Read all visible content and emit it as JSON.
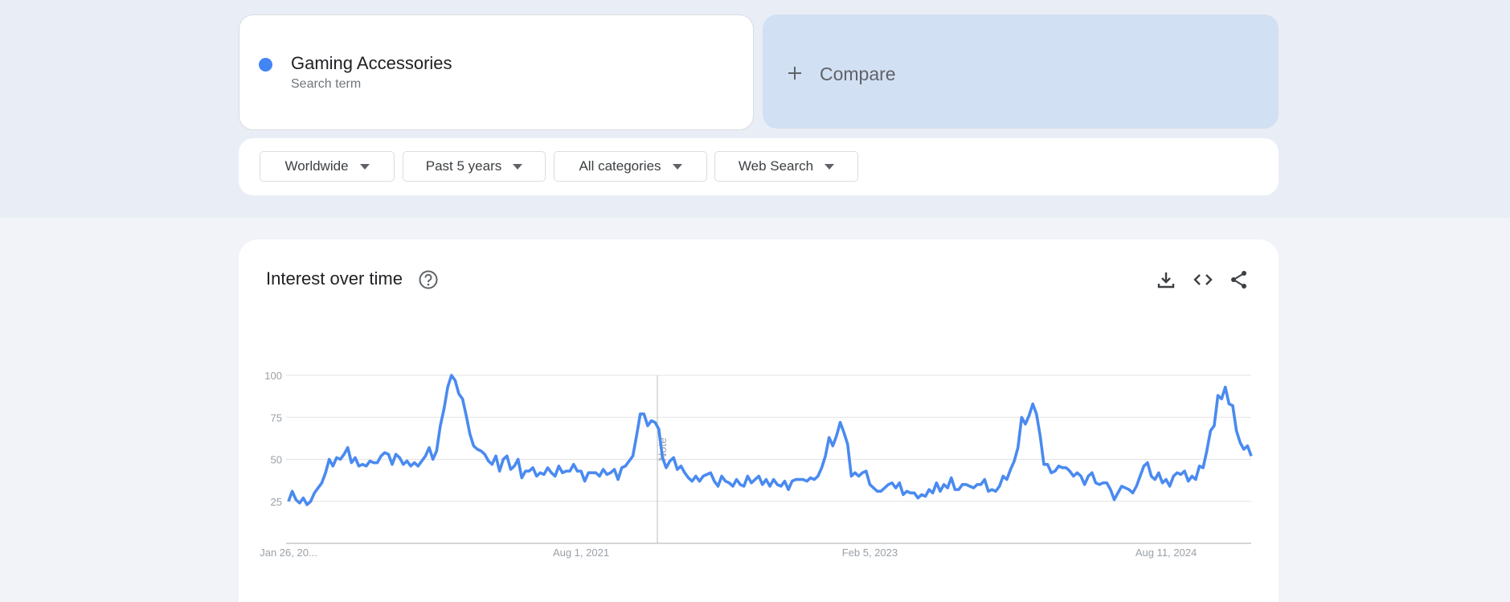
{
  "search": {
    "term": "Gaming Accessories",
    "subtitle": "Search term"
  },
  "compare": {
    "label": "Compare"
  },
  "filters": [
    "Worldwide",
    "Past 5 years",
    "All categories",
    "Web Search"
  ],
  "panel": {
    "title": "Interest over time"
  },
  "chart_data": {
    "type": "line",
    "annotation": "Note",
    "grid": true,
    "ylim": [
      0,
      100
    ],
    "yticks": [
      25,
      50,
      75,
      100
    ],
    "categories": [
      "Jan 26, 20...",
      null,
      null,
      null,
      null,
      null,
      null,
      null,
      null,
      null,
      null,
      null,
      null,
      null,
      null,
      null,
      null,
      null,
      null,
      null,
      null,
      null,
      null,
      null,
      null,
      null,
      null,
      null,
      null,
      null,
      null,
      null,
      null,
      null,
      null,
      null,
      null,
      null,
      null,
      null,
      null,
      null,
      null,
      null,
      null,
      null,
      null,
      null,
      null,
      null,
      null,
      null,
      null,
      null,
      null,
      null,
      null,
      null,
      null,
      null,
      null,
      null,
      null,
      null,
      null,
      null,
      null,
      null,
      null,
      null,
      null,
      null,
      null,
      null,
      null,
      null,
      null,
      null,
      null,
      "Aug 1, 2021",
      null,
      null,
      null,
      null,
      null,
      null,
      null,
      null,
      null,
      null,
      null,
      null,
      null,
      null,
      null,
      null,
      null,
      null,
      null,
      null,
      null,
      null,
      null,
      null,
      null,
      null,
      null,
      null,
      null,
      null,
      null,
      null,
      null,
      null,
      null,
      null,
      null,
      null,
      null,
      null,
      null,
      null,
      null,
      null,
      null,
      null,
      null,
      null,
      null,
      null,
      null,
      null,
      null,
      null,
      null,
      null,
      null,
      null,
      null,
      null,
      null,
      null,
      null,
      null,
      null,
      null,
      null,
      null,
      null,
      null,
      null,
      null,
      null,
      null,
      null,
      null,
      null,
      "Feb 5, 2023",
      null,
      null,
      null,
      null,
      null,
      null,
      null,
      null,
      null,
      null,
      null,
      null,
      null,
      null,
      null,
      null,
      null,
      null,
      null,
      null,
      null,
      null,
      null,
      null,
      null,
      null,
      null,
      null,
      null,
      null,
      null,
      null,
      null,
      null,
      null,
      null,
      null,
      null,
      null,
      null,
      null,
      null,
      null,
      null,
      null,
      null,
      null,
      null,
      null,
      null,
      null,
      null,
      null,
      null,
      null,
      null,
      null,
      null,
      null,
      null,
      null,
      null,
      null,
      null,
      null,
      null,
      null,
      null,
      null,
      null,
      null,
      null,
      null,
      null,
      null,
      null,
      null,
      null,
      null,
      "Aug 11, 2024",
      null,
      null,
      null,
      null,
      null,
      null,
      null,
      null,
      null,
      null,
      null,
      null,
      null,
      null,
      null,
      null,
      null,
      null,
      null,
      null,
      null,
      null,
      null
    ],
    "series": [
      {
        "color": "#4a8af0",
        "values": [
          25,
          31,
          26,
          24,
          27,
          23,
          25,
          30,
          33,
          36,
          42,
          50,
          46,
          51,
          50,
          53,
          57,
          48,
          51,
          46,
          47,
          46,
          49,
          48,
          48,
          52,
          54,
          53,
          47,
          53,
          51,
          47,
          49,
          46,
          48,
          46,
          49,
          52,
          57,
          50,
          55,
          70,
          80,
          93,
          100,
          97,
          89,
          86,
          76,
          65,
          58,
          56,
          55,
          53,
          49,
          47,
          52,
          43,
          50,
          52,
          44,
          46,
          50,
          39,
          43,
          43,
          45,
          40,
          42,
          41,
          45,
          42,
          40,
          46,
          42,
          43,
          43,
          47,
          43,
          43,
          37,
          42,
          42,
          42,
          40,
          44,
          41,
          42,
          44,
          38,
          45,
          46,
          49,
          52,
          64,
          77,
          77,
          70,
          73,
          72,
          68,
          51,
          45,
          49,
          51,
          44,
          46,
          42,
          39,
          37,
          40,
          37,
          40,
          41,
          42,
          37,
          34,
          40,
          37,
          36,
          34,
          38,
          35,
          34,
          40,
          36,
          38,
          40,
          35,
          38,
          34,
          38,
          35,
          34,
          37,
          32,
          37,
          38,
          38,
          38,
          37,
          39,
          38,
          40,
          45,
          52,
          63,
          58,
          64,
          72,
          66,
          59,
          40,
          42,
          40,
          42,
          43,
          35,
          33,
          31,
          31,
          33,
          35,
          36,
          33,
          36,
          29,
          31,
          30,
          30,
          27,
          29,
          28,
          32,
          30,
          36,
          31,
          35,
          33,
          39,
          32,
          32,
          35,
          35,
          34,
          33,
          35,
          35,
          38,
          31,
          32,
          31,
          34,
          40,
          38,
          44,
          49,
          57,
          75,
          71,
          76,
          83,
          77,
          64,
          47,
          47,
          42,
          43,
          46,
          45,
          45,
          43,
          40,
          42,
          40,
          35,
          40,
          42,
          36,
          35,
          36,
          36,
          32,
          26,
          30,
          34,
          33,
          32,
          30,
          34,
          40,
          46,
          48,
          40,
          38,
          42,
          36,
          38,
          34,
          40,
          42,
          41,
          43,
          37,
          40,
          38,
          46,
          45,
          55,
          67,
          70,
          88,
          86,
          93,
          83,
          82,
          67,
          60,
          56,
          58,
          52
        ]
      }
    ]
  }
}
